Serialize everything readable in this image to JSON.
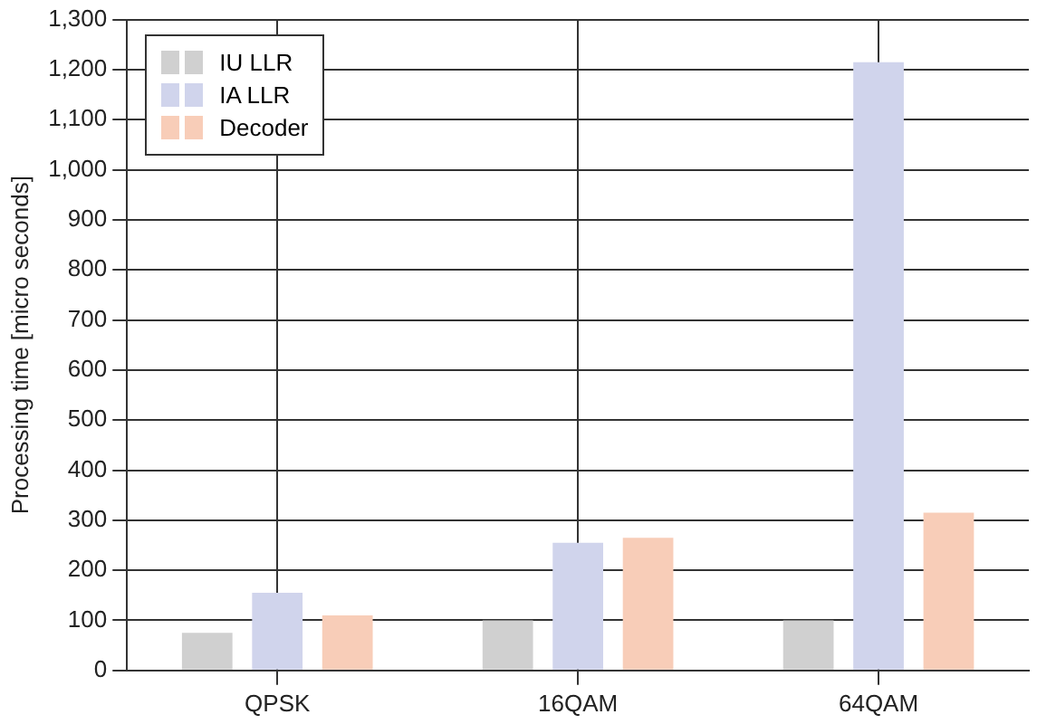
{
  "chart_data": {
    "type": "bar",
    "ylabel": "Processing time [micro seconds]",
    "categories": [
      "QPSK",
      "16QAM",
      "64QAM"
    ],
    "series": [
      {
        "name": "IU LLR",
        "color": "#d0d0d0",
        "values": [
          75,
          100,
          100
        ]
      },
      {
        "name": "IA LLR",
        "color": "#d0d4ec",
        "values": [
          155,
          255,
          1215
        ]
      },
      {
        "name": "Decoder",
        "color": "#f8cdb8",
        "values": [
          110,
          265,
          315
        ]
      }
    ],
    "ylim": [
      0,
      1300
    ],
    "yticks": [
      0,
      100,
      200,
      300,
      400,
      500,
      600,
      700,
      800,
      900,
      {
        "value": 1000,
        "label": "1,000"
      },
      {
        "value": 1100,
        "label": "1,100"
      },
      {
        "value": 1200,
        "label": "1,200"
      },
      {
        "value": 1300,
        "label": "1,300"
      }
    ],
    "grid": true,
    "legend": "top left"
  }
}
